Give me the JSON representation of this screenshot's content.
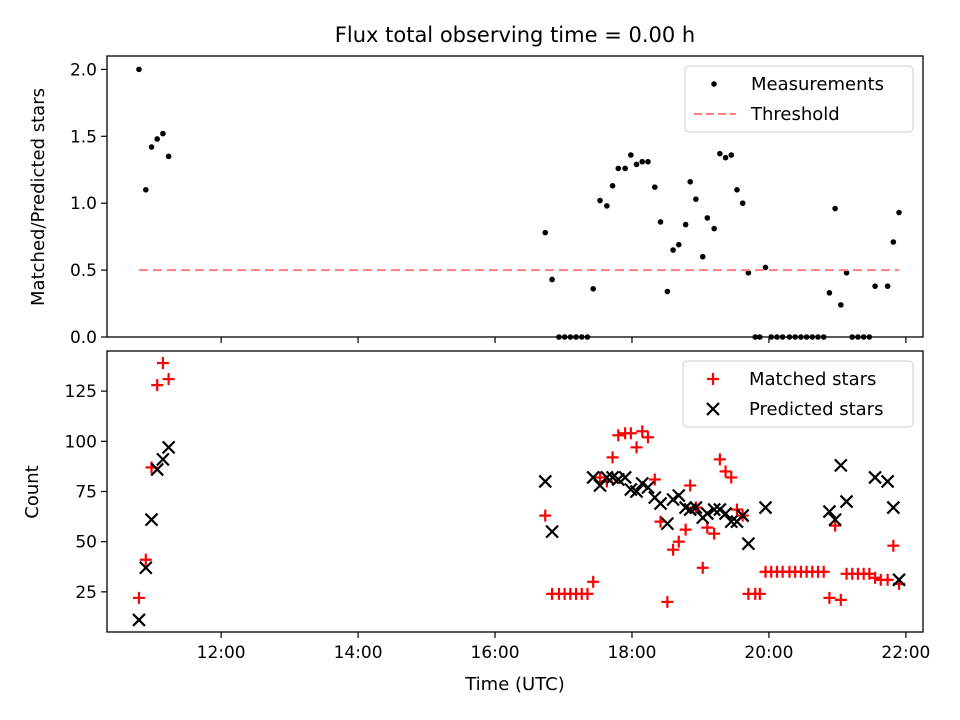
{
  "chart_data": [
    {
      "type": "scatter",
      "title": "Flux total observing time = 0.00 h",
      "xlabel": "",
      "ylabel": "Matched/Predicted stars",
      "x_unit": "time of day (UTC)",
      "xlim": [
        "10:20",
        "22:15"
      ],
      "ylim": [
        0,
        2.1
      ],
      "yticks": [
        0.0,
        0.5,
        1.0,
        1.5,
        2.0
      ],
      "ytick_labels": [
        "0.0",
        "0.5",
        "1.0",
        "1.5",
        "2.0"
      ],
      "legend_position": "top-right",
      "series": [
        {
          "name": "Measurements",
          "marker": "dot",
          "color": "#000000",
          "points": [
            [
              "10:48",
              2.0
            ],
            [
              "10:54",
              1.1
            ],
            [
              "10:59",
              1.42
            ],
            [
              "11:04",
              1.48
            ],
            [
              "11:09",
              1.52
            ],
            [
              "11:14",
              1.35
            ],
            [
              "16:44",
              0.78
            ],
            [
              "16:50",
              0.43
            ],
            [
              "16:56",
              0.0
            ],
            [
              "17:01",
              0.0
            ],
            [
              "17:06",
              0.0
            ],
            [
              "17:11",
              0.0
            ],
            [
              "17:16",
              0.0
            ],
            [
              "17:21",
              0.0
            ],
            [
              "17:26",
              0.36
            ],
            [
              "17:32",
              1.02
            ],
            [
              "17:38",
              0.98
            ],
            [
              "17:43",
              1.13
            ],
            [
              "17:48",
              1.26
            ],
            [
              "17:54",
              1.26
            ],
            [
              "17:59",
              1.36
            ],
            [
              "18:04",
              1.29
            ],
            [
              "18:09",
              1.31
            ],
            [
              "18:14",
              1.31
            ],
            [
              "18:20",
              1.12
            ],
            [
              "18:25",
              0.86
            ],
            [
              "18:31",
              0.34
            ],
            [
              "18:36",
              0.65
            ],
            [
              "18:41",
              0.69
            ],
            [
              "18:47",
              0.84
            ],
            [
              "18:51",
              1.16
            ],
            [
              "18:56",
              1.03
            ],
            [
              "19:02",
              0.6
            ],
            [
              "19:06",
              0.89
            ],
            [
              "19:12",
              0.81
            ],
            [
              "19:17",
              1.37
            ],
            [
              "19:22",
              1.34
            ],
            [
              "19:27",
              1.36
            ],
            [
              "19:32",
              1.1
            ],
            [
              "19:37",
              1.0
            ],
            [
              "19:42",
              0.48
            ],
            [
              "19:48",
              0.0
            ],
            [
              "19:52",
              0.0
            ],
            [
              "19:57",
              0.52
            ],
            [
              "20:02",
              0.0
            ],
            [
              "20:07",
              0.0
            ],
            [
              "20:12",
              0.0
            ],
            [
              "20:18",
              0.0
            ],
            [
              "20:23",
              0.0
            ],
            [
              "20:28",
              0.0
            ],
            [
              "20:33",
              0.0
            ],
            [
              "20:38",
              0.0
            ],
            [
              "20:43",
              0.0
            ],
            [
              "20:48",
              0.0
            ],
            [
              "20:53",
              0.33
            ],
            [
              "20:58",
              0.96
            ],
            [
              "21:03",
              0.24
            ],
            [
              "21:08",
              0.48
            ],
            [
              "21:13",
              0.0
            ],
            [
              "21:18",
              0.0
            ],
            [
              "21:23",
              0.0
            ],
            [
              "21:28",
              0.0
            ],
            [
              "21:33",
              0.38
            ],
            [
              "21:44",
              0.38
            ],
            [
              "21:49",
              0.71
            ],
            [
              "21:54",
              0.93
            ]
          ]
        },
        {
          "name": "Threshold",
          "marker": "dashed-line",
          "color": "#ff7f7f",
          "points": [
            [
              "10:48",
              0.5
            ],
            [
              "21:54",
              0.5
            ]
          ]
        }
      ]
    },
    {
      "type": "scatter",
      "title": "",
      "xlabel": "Time (UTC)",
      "ylabel": "Count",
      "x_unit": "time of day (UTC)",
      "xlim": [
        "10:20",
        "22:15"
      ],
      "ylim": [
        5,
        145
      ],
      "xticks": [
        "12:00",
        "14:00",
        "16:00",
        "18:00",
        "20:00",
        "22:00"
      ],
      "yticks": [
        25,
        50,
        75,
        100,
        125
      ],
      "ytick_labels": [
        "25",
        "50",
        "75",
        "100",
        "125"
      ],
      "legend_position": "top-right",
      "series": [
        {
          "name": "Matched stars",
          "marker": "plus",
          "color": "#ff0000",
          "points": [
            [
              "10:48",
              22
            ],
            [
              "10:54",
              41
            ],
            [
              "10:59",
              87
            ],
            [
              "11:04",
              128
            ],
            [
              "11:09",
              139
            ],
            [
              "11:14",
              131
            ],
            [
              "16:44",
              63
            ],
            [
              "16:50",
              24
            ],
            [
              "16:56",
              24
            ],
            [
              "17:01",
              24
            ],
            [
              "17:06",
              24
            ],
            [
              "17:11",
              24
            ],
            [
              "17:16",
              24
            ],
            [
              "17:21",
              24
            ],
            [
              "17:26",
              30
            ],
            [
              "17:32",
              82
            ],
            [
              "17:38",
              80
            ],
            [
              "17:43",
              92
            ],
            [
              "17:48",
              103
            ],
            [
              "17:54",
              104
            ],
            [
              "17:59",
              104
            ],
            [
              "18:04",
              97
            ],
            [
              "18:09",
              105
            ],
            [
              "18:14",
              102
            ],
            [
              "18:20",
              81
            ],
            [
              "18:25",
              60
            ],
            [
              "18:31",
              20
            ],
            [
              "18:36",
              46
            ],
            [
              "18:41",
              50
            ],
            [
              "18:47",
              56
            ],
            [
              "18:51",
              78
            ],
            [
              "18:56",
              67
            ],
            [
              "19:02",
              37
            ],
            [
              "19:06",
              57
            ],
            [
              "19:12",
              54
            ],
            [
              "19:17",
              91
            ],
            [
              "19:22",
              85
            ],
            [
              "19:27",
              82
            ],
            [
              "19:32",
              66
            ],
            [
              "19:37",
              63
            ],
            [
              "19:42",
              24
            ],
            [
              "19:48",
              24
            ],
            [
              "19:52",
              24
            ],
            [
              "19:57",
              35
            ],
            [
              "20:02",
              35
            ],
            [
              "20:07",
              35
            ],
            [
              "20:12",
              35
            ],
            [
              "20:18",
              35
            ],
            [
              "20:23",
              35
            ],
            [
              "20:28",
              35
            ],
            [
              "20:33",
              35
            ],
            [
              "20:38",
              35
            ],
            [
              "20:43",
              35
            ],
            [
              "20:48",
              35
            ],
            [
              "20:53",
              22
            ],
            [
              "20:58",
              58
            ],
            [
              "21:03",
              21
            ],
            [
              "21:08",
              34
            ],
            [
              "21:13",
              34
            ],
            [
              "21:18",
              34
            ],
            [
              "21:23",
              34
            ],
            [
              "21:28",
              34
            ],
            [
              "21:33",
              32
            ],
            [
              "21:38",
              31
            ],
            [
              "21:44",
              31
            ],
            [
              "21:49",
              48
            ],
            [
              "21:54",
              29
            ]
          ]
        },
        {
          "name": "Predicted stars",
          "marker": "x",
          "color": "#000000",
          "points": [
            [
              "10:48",
              11
            ],
            [
              "10:54",
              37
            ],
            [
              "10:59",
              61
            ],
            [
              "11:04",
              86
            ],
            [
              "11:09",
              91
            ],
            [
              "11:14",
              97
            ],
            [
              "16:44",
              80
            ],
            [
              "16:50",
              55
            ],
            [
              "17:26",
              82
            ],
            [
              "17:32",
              78
            ],
            [
              "17:38",
              82
            ],
            [
              "17:43",
              82
            ],
            [
              "17:48",
              81
            ],
            [
              "17:54",
              82
            ],
            [
              "17:59",
              76
            ],
            [
              "18:04",
              75
            ],
            [
              "18:09",
              79
            ],
            [
              "18:14",
              77
            ],
            [
              "18:20",
              72
            ],
            [
              "18:25",
              69
            ],
            [
              "18:31",
              59
            ],
            [
              "18:36",
              71
            ],
            [
              "18:41",
              73
            ],
            [
              "18:47",
              67
            ],
            [
              "18:51",
              66
            ],
            [
              "18:56",
              67
            ],
            [
              "19:02",
              62
            ],
            [
              "19:06",
              64
            ],
            [
              "19:12",
              66
            ],
            [
              "19:17",
              66
            ],
            [
              "19:22",
              64
            ],
            [
              "19:27",
              60
            ],
            [
              "19:32",
              60
            ],
            [
              "19:37",
              63
            ],
            [
              "19:42",
              49
            ],
            [
              "19:57",
              67
            ],
            [
              "20:53",
              65
            ],
            [
              "20:58",
              61
            ],
            [
              "21:03",
              88
            ],
            [
              "21:08",
              70
            ],
            [
              "21:33",
              82
            ],
            [
              "21:44",
              80
            ],
            [
              "21:49",
              67
            ],
            [
              "21:54",
              31
            ]
          ]
        }
      ]
    }
  ]
}
